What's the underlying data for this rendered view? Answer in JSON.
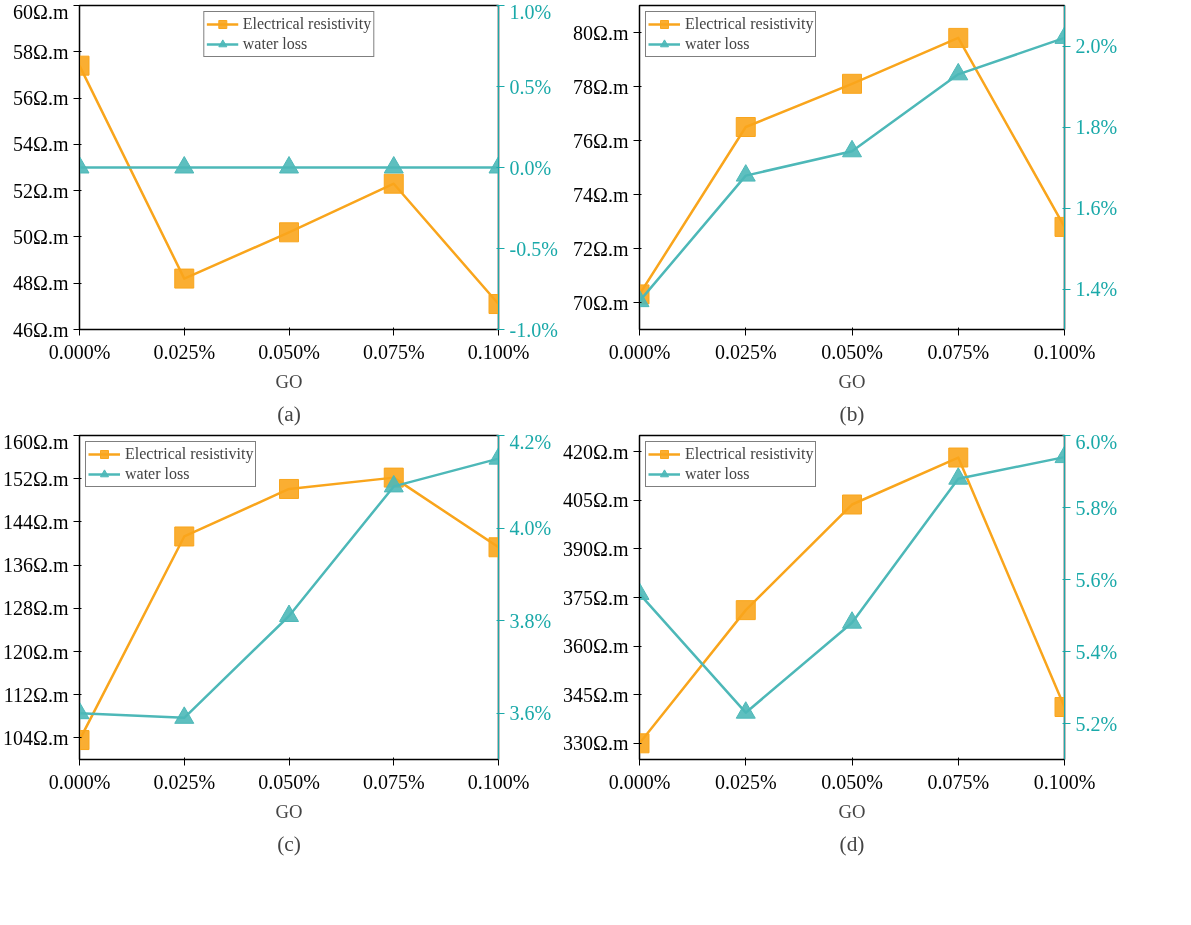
{
  "chart_data": [
    {
      "type": "line",
      "annotations": [
        "(a)"
      ],
      "xlabel": "GO",
      "x": [
        0,
        0.025,
        0.05,
        0.075,
        0.1
      ],
      "xlim": [
        0,
        0.1
      ],
      "xticks": [
        {
          "value": 0,
          "label": "0.000%"
        },
        {
          "value": 0.025,
          "label": "0.025%"
        },
        {
          "value": 0.05,
          "label": "0.050%"
        },
        {
          "value": 0.075,
          "label": "0.075%"
        },
        {
          "value": 0.1,
          "label": "0.100%"
        }
      ],
      "ylim": [
        46,
        60
      ],
      "yticks": [
        {
          "value": 46,
          "label": "46Ω.m"
        },
        {
          "value": 48,
          "label": "48Ω.m"
        },
        {
          "value": 50,
          "label": "50Ω.m"
        },
        {
          "value": 52,
          "label": "52Ω.m"
        },
        {
          "value": 54,
          "label": "54Ω.m"
        },
        {
          "value": 56,
          "label": "56Ω.m"
        },
        {
          "value": 58,
          "label": "58Ω.m"
        },
        {
          "value": 60,
          "label": "60Ω.m"
        }
      ],
      "y2lim": [
        -1.0,
        1.0
      ],
      "y2ticks": [
        {
          "value": -1.0,
          "label": "-1.0%"
        },
        {
          "value": -0.5,
          "label": "-0.5%"
        },
        {
          "value": 0.0,
          "label": "0.0%"
        },
        {
          "value": 0.5,
          "label": "0.5%"
        },
        {
          "value": 1.0,
          "label": "1.0%"
        }
      ],
      "legend": "top",
      "line_style": "solid",
      "series": [
        {
          "name": "Electrical resistivity",
          "color": "#f9a51c",
          "marker": "square",
          "values": [
            57.4,
            48.2,
            50.2,
            52.3,
            47.1
          ]
        },
        {
          "name": "water loss",
          "color": "#4db8b8",
          "marker": "triangle",
          "axis": "y2",
          "values": [
            0.0,
            0.0,
            0.0,
            0.0,
            0.0
          ]
        }
      ]
    },
    {
      "type": "line",
      "annotations": [
        "(b)"
      ],
      "xlabel": "GO",
      "x": [
        0,
        0.025,
        0.05,
        0.075,
        0.1
      ],
      "xlim": [
        0,
        0.1
      ],
      "xticks": [
        {
          "value": 0,
          "label": "0.000%"
        },
        {
          "value": 0.025,
          "label": "0.025%"
        },
        {
          "value": 0.05,
          "label": "0.050%"
        },
        {
          "value": 0.075,
          "label": "0.075%"
        },
        {
          "value": 0.1,
          "label": "0.100%"
        }
      ],
      "ylim": [
        69,
        81
      ],
      "yticks": [
        {
          "value": 70,
          "label": "70Ω.m"
        },
        {
          "value": 72,
          "label": "72Ω.m"
        },
        {
          "value": 74,
          "label": "74Ω.m"
        },
        {
          "value": 76,
          "label": "76Ω.m"
        },
        {
          "value": 78,
          "label": "78Ω.m"
        },
        {
          "value": 80,
          "label": "80Ω.m"
        }
      ],
      "y2lim": [
        1.3,
        2.1
      ],
      "y2ticks": [
        {
          "value": 1.4,
          "label": "1.4%"
        },
        {
          "value": 1.6,
          "label": "1.6%"
        },
        {
          "value": 1.8,
          "label": "1.8%"
        },
        {
          "value": 2.0,
          "label": "2.0%"
        }
      ],
      "legend": "top left",
      "line_style": "solid",
      "series": [
        {
          "name": "Electrical resistivity",
          "color": "#f9a51c",
          "marker": "square",
          "values": [
            70.3,
            76.5,
            78.1,
            79.8,
            72.8
          ]
        },
        {
          "name": "water loss",
          "color": "#4db8b8",
          "marker": "triangle",
          "axis": "y2",
          "values": [
            1.37,
            1.68,
            1.74,
            1.93,
            2.02
          ]
        }
      ]
    },
    {
      "type": "line",
      "annotations": [
        "(c)"
      ],
      "xlabel": "GO",
      "x": [
        0,
        0.025,
        0.05,
        0.075,
        0.1
      ],
      "xlim": [
        0,
        0.1
      ],
      "xticks": [
        {
          "value": 0,
          "label": "0.000%"
        },
        {
          "value": 0.025,
          "label": "0.025%"
        },
        {
          "value": 0.05,
          "label": "0.050%"
        },
        {
          "value": 0.075,
          "label": "0.075%"
        },
        {
          "value": 0.1,
          "label": "0.100%"
        }
      ],
      "ylim": [
        100,
        160
      ],
      "yticks": [
        {
          "value": 104,
          "label": "104Ω.m"
        },
        {
          "value": 112,
          "label": "112Ω.m"
        },
        {
          "value": 120,
          "label": "120Ω.m"
        },
        {
          "value": 128,
          "label": "128Ω.m"
        },
        {
          "value": 136,
          "label": "136Ω.m"
        },
        {
          "value": 144,
          "label": "144Ω.m"
        },
        {
          "value": 152,
          "label": "152Ω.m"
        },
        {
          "value": 160,
          "label": "160Ω.m"
        }
      ],
      "y2lim": [
        3.5,
        4.2
      ],
      "y2ticks": [
        {
          "value": 3.6,
          "label": "3.6%"
        },
        {
          "value": 3.8,
          "label": "3.8%"
        },
        {
          "value": 4.0,
          "label": "4.0%"
        },
        {
          "value": 4.2,
          "label": "4.2%"
        }
      ],
      "legend": "top left",
      "line_style": "solid",
      "series": [
        {
          "name": "Electrical resistivity",
          "color": "#f9a51c",
          "marker": "square",
          "values": [
            103.6,
            141.3,
            150.1,
            152.2,
            139.3
          ]
        },
        {
          "name": "water loss",
          "color": "#4db8b8",
          "marker": "triangle",
          "axis": "y2",
          "values": [
            3.6,
            3.59,
            3.81,
            4.09,
            4.15
          ]
        }
      ]
    },
    {
      "type": "line",
      "annotations": [
        "(d)"
      ],
      "xlabel": "GO",
      "x": [
        0,
        0.025,
        0.05,
        0.075,
        0.1
      ],
      "xlim": [
        0,
        0.1
      ],
      "xticks": [
        {
          "value": 0,
          "label": "0.000%"
        },
        {
          "value": 0.025,
          "label": "0.025%"
        },
        {
          "value": 0.05,
          "label": "0.050%"
        },
        {
          "value": 0.075,
          "label": "0.075%"
        },
        {
          "value": 0.1,
          "label": "0.100%"
        }
      ],
      "ylim": [
        325,
        425
      ],
      "yticks": [
        {
          "value": 330,
          "label": "330Ω.m"
        },
        {
          "value": 345,
          "label": "345Ω.m"
        },
        {
          "value": 360,
          "label": "360Ω.m"
        },
        {
          "value": 375,
          "label": "375Ω.m"
        },
        {
          "value": 390,
          "label": "390Ω.m"
        },
        {
          "value": 405,
          "label": "405Ω.m"
        },
        {
          "value": 420,
          "label": "420Ω.m"
        }
      ],
      "y2lim": [
        5.1,
        6.0
      ],
      "y2ticks": [
        {
          "value": 5.2,
          "label": "5.2%"
        },
        {
          "value": 5.4,
          "label": "5.4%"
        },
        {
          "value": 5.6,
          "label": "5.6%"
        },
        {
          "value": 5.8,
          "label": "5.8%"
        },
        {
          "value": 6.0,
          "label": "6.0%"
        }
      ],
      "legend": "top left",
      "line_style": "solid",
      "series": [
        {
          "name": "Electrical resistivity",
          "color": "#f9a51c",
          "marker": "square",
          "values": [
            330,
            371.1,
            403.7,
            418.2,
            341.2
          ]
        },
        {
          "name": "water loss",
          "color": "#4db8b8",
          "marker": "triangle",
          "axis": "y2",
          "values": [
            5.56,
            5.23,
            5.48,
            5.88,
            5.94
          ]
        }
      ]
    }
  ]
}
